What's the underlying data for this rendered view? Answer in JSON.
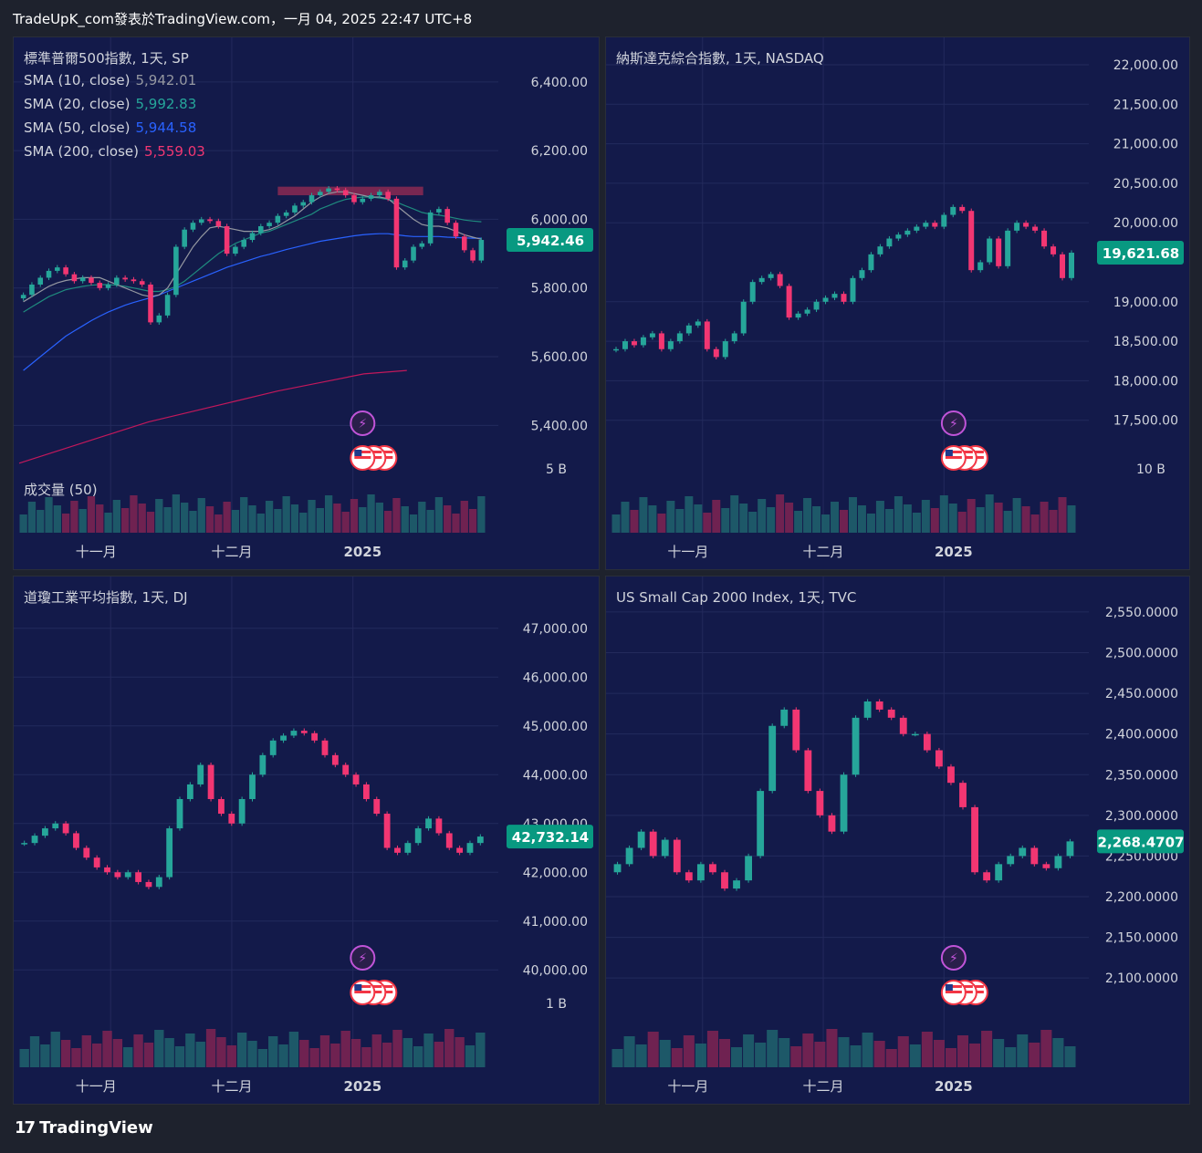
{
  "header": "TradeUpK_com發表於TradingView.com，一月 04, 2025 22:47 UTC+8",
  "footer_brand": "TradingView",
  "colors": {
    "bg": "#131a4a",
    "up": "#26a69a",
    "down": "#f23672",
    "zone": "#8b2a52",
    "sma10": "#9598a1",
    "sma20": "#1f8a7e",
    "sma50": "#2962ff",
    "sma200": "#c2185b",
    "badge": "#089981"
  },
  "panels": [
    {
      "id": "sp",
      "title": "標準普爾500指數, 1天, SP",
      "sma_labels": [
        {
          "label": "SMA (10, close)",
          "value": "5,942.01",
          "color": "#9598a1"
        },
        {
          "label": "SMA (20, close)",
          "value": "5,992.83",
          "color": "#26a69a"
        },
        {
          "label": "SMA (50, close)",
          "value": "5,944.58",
          "color": "#2962ff"
        },
        {
          "label": "SMA (200, close)",
          "value": "5,559.03",
          "color": "#f23672"
        }
      ],
      "volume_label": "成交量 (50)",
      "y_ticks": [
        "6,400.00",
        "6,200.00",
        "6,000.00",
        "5,800.00",
        "5,600.00",
        "5,400.00"
      ],
      "vol_tick": "5 B",
      "x_ticks": [
        "十一月",
        "十二月",
        "2025"
      ],
      "last_price": "5,942.46"
    },
    {
      "id": "nasdaq",
      "title": "納斯達克綜合指數, 1天, NASDAQ",
      "sma_labels": [],
      "volume_label": "",
      "y_ticks": [
        "22,000.00",
        "21,500.00",
        "21,000.00",
        "20,500.00",
        "20,000.00",
        "19,000.00",
        "18,500.00",
        "18,000.00",
        "17,500.00"
      ],
      "vol_tick": "10 B",
      "x_ticks": [
        "十一月",
        "十二月",
        "2025"
      ],
      "last_price": "19,621.68"
    },
    {
      "id": "dj",
      "title": "道瓊工業平均指數, 1天, DJ",
      "sma_labels": [],
      "volume_label": "",
      "y_ticks": [
        "47,000.00",
        "46,000.00",
        "45,000.00",
        "44,000.00",
        "43,000.00",
        "42,000.00",
        "41,000.00",
        "40,000.00"
      ],
      "vol_tick": "1 B",
      "x_ticks": [
        "十一月",
        "十二月",
        "2025"
      ],
      "last_price": "42,732.14"
    },
    {
      "id": "rut",
      "title": "US Small Cap 2000 Index, 1天, TVC",
      "sma_labels": [],
      "volume_label": "",
      "y_ticks": [
        "2,550.0000",
        "2,500.0000",
        "2,450.0000",
        "2,400.0000",
        "2,350.0000",
        "2,300.0000",
        "2,250.0000",
        "2,200.0000",
        "2,150.0000",
        "2,100.0000"
      ],
      "vol_tick": "",
      "x_ticks": [
        "十一月",
        "十二月",
        "2025"
      ],
      "last_price": "2,268.4707"
    }
  ],
  "chart_data": [
    {
      "type": "candlestick",
      "panel": "sp",
      "title": "標準普爾500指數, 1天, SP",
      "ylim": [
        5300,
        6450
      ],
      "close": [
        5780,
        5810,
        5830,
        5850,
        5860,
        5840,
        5820,
        5830,
        5815,
        5800,
        5810,
        5830,
        5825,
        5820,
        5810,
        5700,
        5720,
        5780,
        5920,
        5970,
        5990,
        6000,
        5995,
        5980,
        5900,
        5920,
        5940,
        5960,
        5980,
        5990,
        6010,
        6020,
        6040,
        6050,
        6070,
        6080,
        6090,
        6085,
        6070,
        6050,
        6060,
        6070,
        6080,
        6060,
        5860,
        5880,
        5920,
        5930,
        6020,
        6030,
        5990,
        5950,
        5910,
        5880,
        5940
      ],
      "sma10": [
        5760,
        5775,
        5790,
        5805,
        5815,
        5822,
        5826,
        5830,
        5830,
        5830,
        5820,
        5810,
        5800,
        5790,
        5780,
        5775,
        5780,
        5800,
        5840,
        5880,
        5920,
        5950,
        5975,
        5980,
        5975,
        5970,
        5965,
        5965,
        5965,
        5970,
        5980,
        5995,
        6010,
        6030,
        6050,
        6065,
        6075,
        6080,
        6080,
        6075,
        6070,
        6065,
        6065,
        6060,
        6040,
        6020,
        6000,
        5985,
        5980,
        5980,
        5975,
        5965,
        5955,
        5948,
        5942
      ],
      "sma20": [
        5730,
        5745,
        5760,
        5775,
        5785,
        5795,
        5800,
        5805,
        5808,
        5810,
        5810,
        5808,
        5805,
        5800,
        5795,
        5790,
        5790,
        5795,
        5805,
        5820,
        5840,
        5860,
        5880,
        5900,
        5915,
        5930,
        5940,
        5950,
        5960,
        5965,
        5975,
        5985,
        5995,
        6005,
        6015,
        6030,
        6040,
        6050,
        6058,
        6062,
        6065,
        6065,
        6062,
        6058,
        6050,
        6040,
        6030,
        6020,
        6015,
        6012,
        6008,
        6003,
        5998,
        5995,
        5993
      ],
      "sma50": [
        5560,
        5580,
        5600,
        5620,
        5640,
        5660,
        5675,
        5690,
        5705,
        5718,
        5730,
        5740,
        5750,
        5758,
        5765,
        5772,
        5780,
        5790,
        5800,
        5810,
        5820,
        5830,
        5840,
        5850,
        5860,
        5868,
        5876,
        5884,
        5892,
        5898,
        5905,
        5912,
        5918,
        5924,
        5930,
        5936,
        5940,
        5944,
        5948,
        5952,
        5955,
        5957,
        5958,
        5958,
        5955,
        5952,
        5950,
        5950,
        5950,
        5950,
        5948,
        5947,
        5946,
        5945,
        5945
      ],
      "sma200": [
        5290,
        5330,
        5370,
        5410,
        5440,
        5470,
        5500,
        5525,
        5550,
        5560
      ],
      "zones": [
        {
          "from": 6095,
          "to": 6070
        }
      ]
    },
    {
      "type": "candlestick",
      "panel": "nasdaq",
      "title": "納斯達克綜合指數, 1天, NASDAQ",
      "ylim": [
        17000,
        22000
      ],
      "close": [
        18400,
        18500,
        18450,
        18550,
        18600,
        18400,
        18500,
        18600,
        18700,
        18750,
        18400,
        18300,
        18500,
        18600,
        19000,
        19250,
        19300,
        19350,
        19200,
        18800,
        18850,
        18900,
        19000,
        19050,
        19100,
        19000,
        19300,
        19400,
        19600,
        19700,
        19800,
        19850,
        19900,
        19950,
        20000,
        19950,
        20100,
        20200,
        20150,
        19400,
        19500,
        19800,
        19450,
        19900,
        20000,
        19950,
        19900,
        19700,
        19600,
        19300,
        19621
      ]
    },
    {
      "type": "candlestick",
      "panel": "dj",
      "title": "道瓊工業平均指數, 1天, DJ",
      "ylim": [
        39500,
        47500
      ],
      "close": [
        42600,
        42750,
        42900,
        43000,
        42800,
        42500,
        42300,
        42100,
        42000,
        41900,
        42000,
        41800,
        41700,
        41900,
        42900,
        43500,
        43800,
        44200,
        43500,
        43200,
        43000,
        43500,
        44000,
        44400,
        44700,
        44800,
        44900,
        44850,
        44700,
        44400,
        44200,
        44000,
        43800,
        43500,
        43200,
        42500,
        42400,
        42600,
        42900,
        43100,
        42800,
        42500,
        42400,
        42600,
        42732
      ]
    },
    {
      "type": "candlestick",
      "panel": "rut",
      "title": "US Small Cap 2000 Index, 1天, TVC",
      "ylim": [
        2080,
        2560
      ],
      "close": [
        2240,
        2260,
        2280,
        2250,
        2270,
        2230,
        2220,
        2240,
        2230,
        2210,
        2220,
        2250,
        2330,
        2410,
        2430,
        2380,
        2330,
        2300,
        2280,
        2350,
        2420,
        2440,
        2430,
        2420,
        2400,
        2400,
        2380,
        2360,
        2340,
        2310,
        2230,
        2220,
        2240,
        2250,
        2260,
        2240,
        2235,
        2250,
        2268
      ]
    }
  ]
}
